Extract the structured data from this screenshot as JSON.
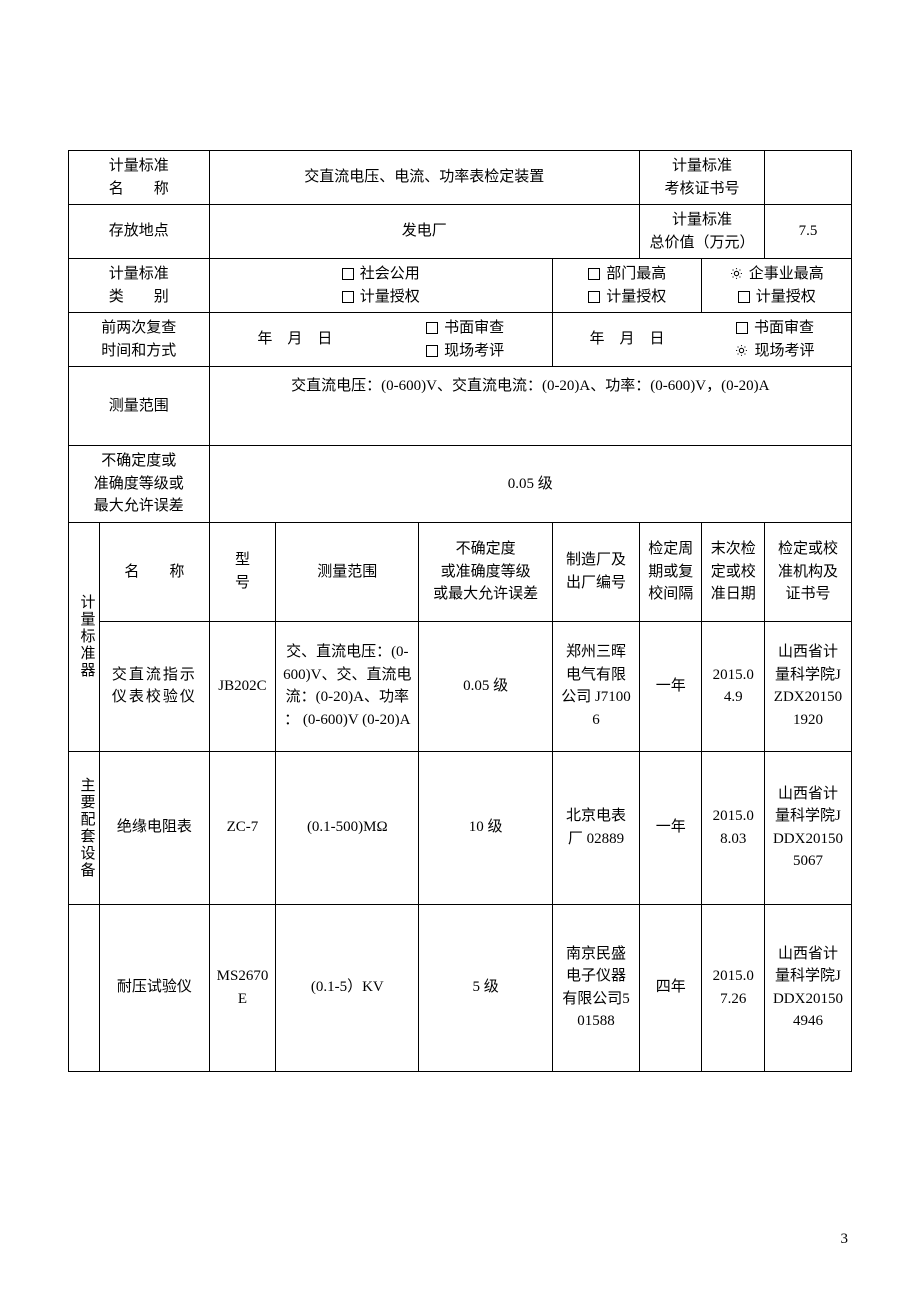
{
  "page_number": "3",
  "colors": {
    "border": "#000000",
    "text": "#000000",
    "background": "#ffffff"
  },
  "fontsize_pt": 11,
  "row1": {
    "label": "计量标准\n名　　称",
    "value": "交直流电压、电流、功率表检定装置",
    "cert_label": "计量标准\n考核证书号",
    "cert_value": ""
  },
  "row2": {
    "label": "存放地点",
    "value": "发电厂",
    "price_label": "计量标准\n总价值（万元）",
    "price_value": "7.5"
  },
  "row3": {
    "label": "计量标准\n类　　别",
    "opts": [
      {
        "text": "社会公用",
        "checked": false,
        "style": "box"
      },
      {
        "text": "计量授权",
        "checked": false,
        "style": "box"
      },
      {
        "text": "部门最高",
        "checked": false,
        "style": "box"
      },
      {
        "text": "计量授权",
        "checked": false,
        "style": "box"
      },
      {
        "text": "企事业最高",
        "checked": true,
        "style": "gear"
      },
      {
        "text": "计量授权",
        "checked": false,
        "style": "box"
      }
    ]
  },
  "row4": {
    "label": "前两次复查\n时间和方式",
    "date_template": "年　月　日",
    "left_opts": [
      {
        "text": "书面审查",
        "checked": false,
        "style": "box"
      },
      {
        "text": "现场考评",
        "checked": false,
        "style": "box"
      }
    ],
    "right_opts": [
      {
        "text": "书面审查",
        "checked": false,
        "style": "box"
      },
      {
        "text": "现场考评",
        "checked": true,
        "style": "gear"
      }
    ]
  },
  "row5": {
    "label": "测量范围",
    "value": "交直流电压：(0-600)V、交直流电流：(0-20)A、功率：(0-600)V，(0-20)A"
  },
  "row6": {
    "label": "不确定度或\n准确度等级或\n最大允许误差",
    "value": "0.05 级"
  },
  "equipment": {
    "header": {
      "name": "名　　称",
      "model": "型　　号",
      "range": "测量范围",
      "uncertainty": "不确定度\n或准确度等级\n或最大允许误差",
      "maker": "制造厂及\n出厂编号",
      "interval": "检定周\n期或复\n校间隔",
      "last_date": "末次检\n定或校\n准日期",
      "cert": "检定或校\n准机构及\n证书号"
    },
    "section1_label": "计量标准器",
    "section2_label": "主要配套设备",
    "rows": [
      {
        "name": "交直流指示仪表校验仪",
        "model": "JB202C",
        "range": "交、直流电压：(0-600)V、交、直流电流：(0-20)A、功率 ： (0-600)V (0-20)A",
        "uncertainty": "0.05 级",
        "maker": "郑州三晖电气有限公司 J71006",
        "interval": "一年",
        "last_date": "2015.04.9",
        "cert": "山西省计量科学院JZDX201501920"
      },
      {
        "name": "绝缘电阻表",
        "model": "ZC-7",
        "range": "(0.1-500)MΩ",
        "uncertainty": "10 级",
        "maker": "北京电表厂 02889",
        "interval": "一年",
        "last_date": "2015.08.03",
        "cert": "山西省计量科学院JDDX201505067"
      },
      {
        "name": "耐压试验仪",
        "model": "MS2670E",
        "range": "(0.1-5）KV",
        "uncertainty": "5 级",
        "maker": "南京民盛电子仪器有限公司501588",
        "interval": "四年",
        "last_date": "2015.07.26",
        "cert": "山西省计量科学院JDDX201504946"
      }
    ]
  }
}
